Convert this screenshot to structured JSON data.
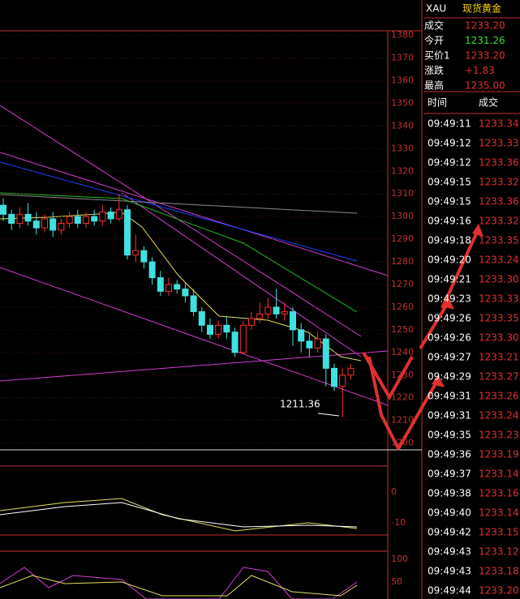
{
  "header": {
    "symbol": "XAU",
    "name": "现货黄金"
  },
  "quote": [
    {
      "label": "成交",
      "value": "1233.20"
    },
    {
      "label": "今开",
      "value": "1231.26"
    },
    {
      "label": "买价1",
      "value": "1233.20"
    },
    {
      "label": "涨跌",
      "value": "+1.83"
    },
    {
      "label": "最高",
      "value": "1235.00"
    }
  ],
  "ticks_table": {
    "columns": [
      "时间",
      "成交"
    ],
    "rows": [
      [
        "09:49:11",
        "1233.34"
      ],
      [
        "09:49:12",
        "1233.33"
      ],
      [
        "09:49:12",
        "1233.36"
      ],
      [
        "09:49:15",
        "1233.32"
      ],
      [
        "09:49:15",
        "1233.36"
      ],
      [
        "09:49:16",
        "1233.32"
      ],
      [
        "09:49:18",
        "1233.35"
      ],
      [
        "09:49:20",
        "1233.24"
      ],
      [
        "09:49:21",
        "1233.30"
      ],
      [
        "09:49:23",
        "1233.33"
      ],
      [
        "09:49:26",
        "1233.35"
      ],
      [
        "09:49:26",
        "1233.30"
      ],
      [
        "09:49:27",
        "1233.21"
      ],
      [
        "09:49:29",
        "1233.27"
      ],
      [
        "09:49:31",
        "1233.26"
      ],
      [
        "09:49:31",
        "1233.24"
      ],
      [
        "09:49:35",
        "1233.23"
      ],
      [
        "09:49:36",
        "1233.19"
      ],
      [
        "09:49:37",
        "1233.14"
      ],
      [
        "09:49:38",
        "1233.16"
      ],
      [
        "09:49:40",
        "1233.14"
      ],
      [
        "09:49:42",
        "1233.15"
      ],
      [
        "09:49:43",
        "1233.12"
      ],
      [
        "09:49:43",
        "1233.18"
      ],
      [
        "09:49:44",
        "1233.20"
      ]
    ]
  },
  "chart_data": {
    "type": "candlestick",
    "ylim": [
      1197,
      1382
    ],
    "yticks": [
      1200,
      1210,
      1220,
      1230,
      1240,
      1250,
      1260,
      1270,
      1280,
      1290,
      1300,
      1310,
      1320,
      1330,
      1340,
      1350,
      1360,
      1370,
      1380
    ],
    "open": [
      1305,
      1301,
      1297,
      1301,
      1298,
      1295,
      1299,
      1294,
      1297,
      1300,
      1297,
      1300,
      1298,
      1302,
      1299,
      1303,
      1283,
      1285,
      1280,
      1273,
      1267,
      1270,
      1268,
      1265,
      1258,
      1252,
      1248,
      1252,
      1249,
      1240,
      1252,
      1255,
      1257,
      1260,
      1257,
      1258,
      1250,
      1245,
      1242,
      1246,
      1233,
      1225,
      1230
    ],
    "high": [
      1308,
      1303,
      1304,
      1306,
      1302,
      1301,
      1302,
      1299,
      1302,
      1303,
      1302,
      1303,
      1305,
      1304,
      1310,
      1305,
      1292,
      1287,
      1282,
      1276,
      1273,
      1272,
      1271,
      1268,
      1260,
      1255,
      1254,
      1256,
      1251,
      1254,
      1258,
      1262,
      1264,
      1268,
      1262,
      1260,
      1253,
      1248,
      1249,
      1248,
      1235,
      1233,
      1235
    ],
    "low": [
      1298,
      1294,
      1295,
      1296,
      1292,
      1293,
      1291,
      1292,
      1295,
      1295,
      1295,
      1296,
      1296,
      1297,
      1298,
      1281,
      1280,
      1277,
      1270,
      1265,
      1265,
      1266,
      1262,
      1256,
      1249,
      1246,
      1246,
      1246,
      1238,
      1239,
      1250,
      1253,
      1255,
      1255,
      1254,
      1243,
      1240,
      1238,
      1240,
      1225,
      1223,
      1211.36,
      1228
    ],
    "close": [
      1301,
      1297,
      1301,
      1298,
      1295,
      1299,
      1294,
      1297,
      1300,
      1297,
      1300,
      1298,
      1302,
      1299,
      1303,
      1283,
      1285,
      1280,
      1273,
      1267,
      1270,
      1268,
      1265,
      1258,
      1252,
      1248,
      1252,
      1249,
      1240,
      1252,
      1255,
      1257,
      1260,
      1257,
      1258,
      1250,
      1245,
      1242,
      1246,
      1233,
      1225,
      1230,
      1233
    ],
    "annotation": "1211.36"
  },
  "indicators": {
    "macd_ticks": [
      0,
      -10
    ],
    "kdj_ticks": [
      100,
      50
    ]
  }
}
